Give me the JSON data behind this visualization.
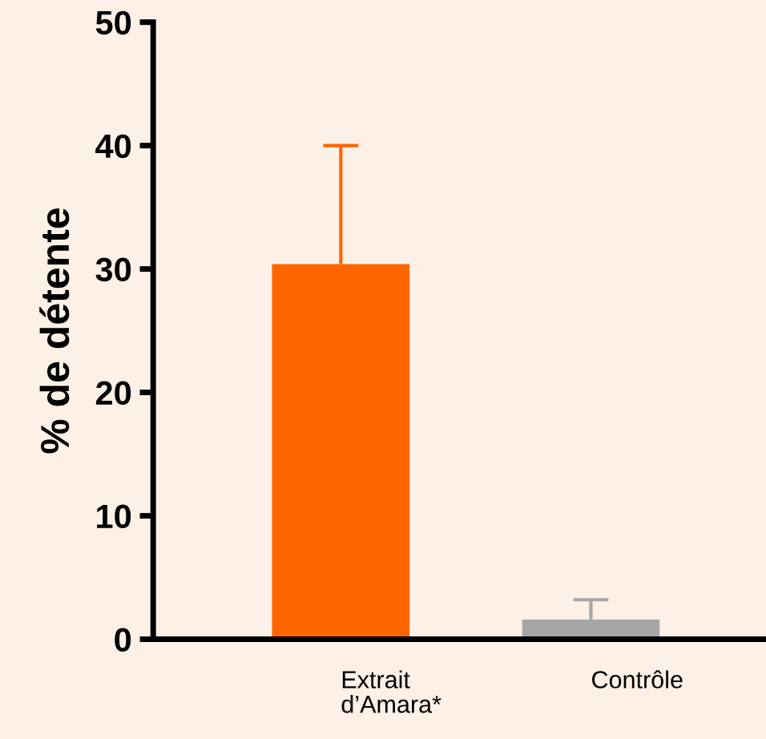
{
  "chart_data": {
    "type": "bar",
    "ylabel": "% de détente",
    "categories": [
      "Extrait\nd’Amara*",
      "Contrôle"
    ],
    "values": [
      30.4,
      1.6
    ],
    "colors": [
      "#ff6600",
      "#a6a6a6"
    ],
    "errors": [
      [
        30.4,
        40
      ],
      [
        1.6,
        3.2
      ]
    ],
    "ylim": [
      0,
      50
    ],
    "yticks": [
      0,
      10,
      20,
      30,
      40,
      50
    ],
    "grid": false
  }
}
